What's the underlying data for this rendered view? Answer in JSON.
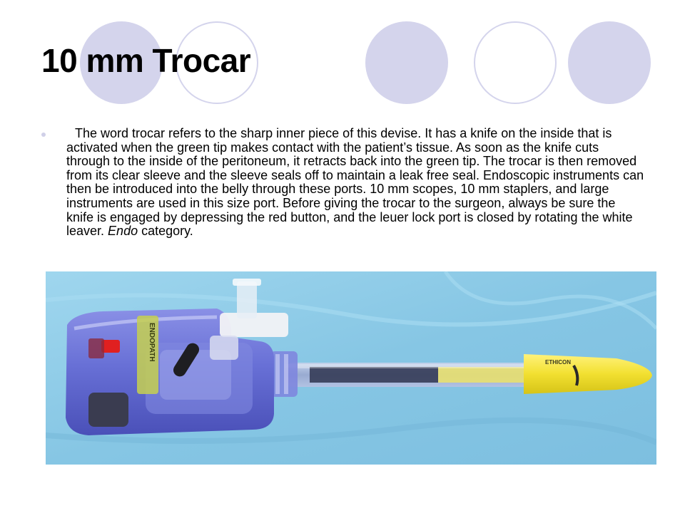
{
  "slide": {
    "title": "10 mm Trocar",
    "bullet": {
      "text_main": "The word trocar refers to the sharp inner piece of this devise.  It has a knife on the inside that is activated when the green tip makes contact with the patient’s tissue.  As soon as the knife cuts through to the inside of the peritoneum, it retracts back into the green tip.  The trocar is then removed from its clear sleeve and the sleeve seals off to maintain a leak free seal.  Endoscopic instruments can then be introduced into the belly through these ports. 10 mm scopes, 10 mm staplers, and large instruments are used in this size port.  Before giving the trocar to the surgeon, always be sure the knife is engaged by depressing the red button, and the leuer lock port is closed by rotating the white leaver.  ",
      "text_italic": "Endo",
      "text_end": " category."
    },
    "photo": {
      "brand_text": "ETHICON",
      "label_text": "ENDOPATH"
    }
  },
  "colors": {
    "decor_circle": "#d4d4ec",
    "background_cloth": "#8ecbe6",
    "trocar_body": "#6b72d8",
    "tip_yellow": "#f0e030",
    "button_red": "#e02020"
  }
}
